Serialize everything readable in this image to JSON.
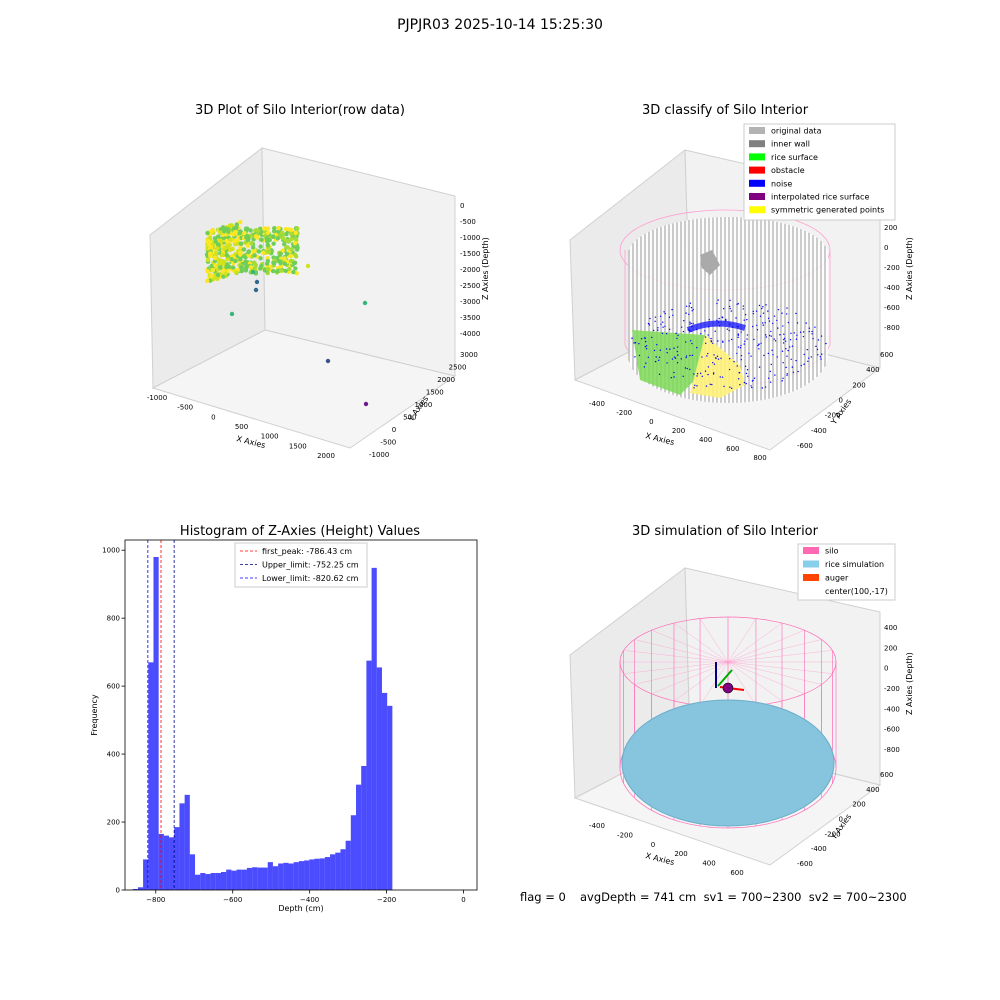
{
  "suptitle": "PJPJR03 2025-10-14 15:25:30",
  "charts": {
    "raw": {
      "title": "3D Plot of Silo Interior(row data)",
      "x_label": "X Axies",
      "y_label": "Y Axies",
      "z_label": "Z Axies (Depth)",
      "x_ticks": [
        "-1000",
        "-500",
        "0",
        "500",
        "1000",
        "1500",
        "2000"
      ],
      "y_ticks": [
        "-1000",
        "-500",
        "0",
        "500",
        "1000",
        "1500",
        "2000",
        "2500",
        "3000"
      ],
      "z_ticks": [
        "0",
        "-500",
        "-1000",
        "-1500",
        "-2000",
        "-2500",
        "-3000",
        "-3500",
        "-4000"
      ]
    },
    "classify": {
      "title": "3D classify of Silo Interior",
      "x_label": "X Axies",
      "y_label": "Y Axies",
      "z_label": "Z Axies (Depth)",
      "x_ticks": [
        "-400",
        "-200",
        "0",
        "200",
        "400",
        "600",
        "800"
      ],
      "y_ticks": [
        "-600",
        "-400",
        "-200",
        "0",
        "200",
        "400",
        "600"
      ],
      "z_ticks": [
        "200",
        "0",
        "-200",
        "-400",
        "-600",
        "-800"
      ],
      "legend": [
        {
          "label": "original data",
          "color": "#b3b3b3"
        },
        {
          "label": "inner wall",
          "color": "#808080"
        },
        {
          "label": "rice surface",
          "color": "#00ff00"
        },
        {
          "label": "obstacle",
          "color": "#ff0000"
        },
        {
          "label": "noise",
          "color": "#0000ff"
        },
        {
          "label": "interpolated rice surface",
          "color": "#800080"
        },
        {
          "label": "symmetric generated points",
          "color": "#ffff00"
        }
      ]
    },
    "simulation": {
      "title": "3D simulation of Silo Interior",
      "x_label": "X Axies",
      "y_label": "Y Axies",
      "z_label": "Z Axies (Depth)",
      "x_ticks": [
        "-400",
        "-200",
        "0",
        "200",
        "400",
        "600"
      ],
      "y_ticks": [
        "-600",
        "-400",
        "-200",
        "0",
        "200",
        "400",
        "600"
      ],
      "z_ticks": [
        "400",
        "200",
        "0",
        "-200",
        "-400",
        "-600",
        "-800"
      ],
      "legend": [
        {
          "label": "silo",
          "color": "#ff69b4"
        },
        {
          "label": "rice simulation",
          "color": "#87ceeb"
        },
        {
          "label": "auger",
          "color": "#ff4500"
        },
        {
          "label": "center(100,-17)",
          "color": ""
        }
      ]
    }
  },
  "chart_data": {
    "type": "bar",
    "title": "Histogram of Z-Axies (Height) Values",
    "xlabel": "Depth (cm)",
    "ylabel": "Frequency",
    "xlim": [
      -880,
      35
    ],
    "ylim": [
      0,
      1030
    ],
    "x_ticks": [
      -800,
      -600,
      -400,
      -200,
      0
    ],
    "x_tick_labels": [
      "−800",
      "−600",
      "−400",
      "−200",
      "0"
    ],
    "y_ticks": [
      0,
      200,
      400,
      600,
      800,
      1000
    ],
    "bin_width": 13.5,
    "bins_start": -860,
    "values": [
      3,
      8,
      90,
      670,
      980,
      165,
      160,
      155,
      185,
      255,
      280,
      105,
      45,
      50,
      47,
      50,
      50,
      53,
      60,
      57,
      60,
      60,
      65,
      67,
      66,
      66,
      82,
      70,
      78,
      80,
      78,
      82,
      85,
      87,
      90,
      92,
      93,
      97,
      105,
      110,
      120,
      145,
      220,
      310,
      365,
      675,
      948,
      655,
      580,
      542
    ],
    "bar_color": "#0000ff",
    "bar_alpha": 0.7,
    "vlines": [
      {
        "x": -786.43,
        "color": "#ff0000",
        "label": "first_peak: -786.43 cm"
      },
      {
        "x": -752.25,
        "color": "#00008b",
        "label": "Upper_limit: -752.25 cm"
      },
      {
        "x": -820.62,
        "color": "#0000ff",
        "label": "Lower_limit: -820.62 cm"
      }
    ],
    "legend_position": "top-center"
  },
  "footer": {
    "flag": "flag = 0",
    "avg": "avgDepth = 741 cm  sv1 = 700~2300  sv2 = 700~2300"
  }
}
